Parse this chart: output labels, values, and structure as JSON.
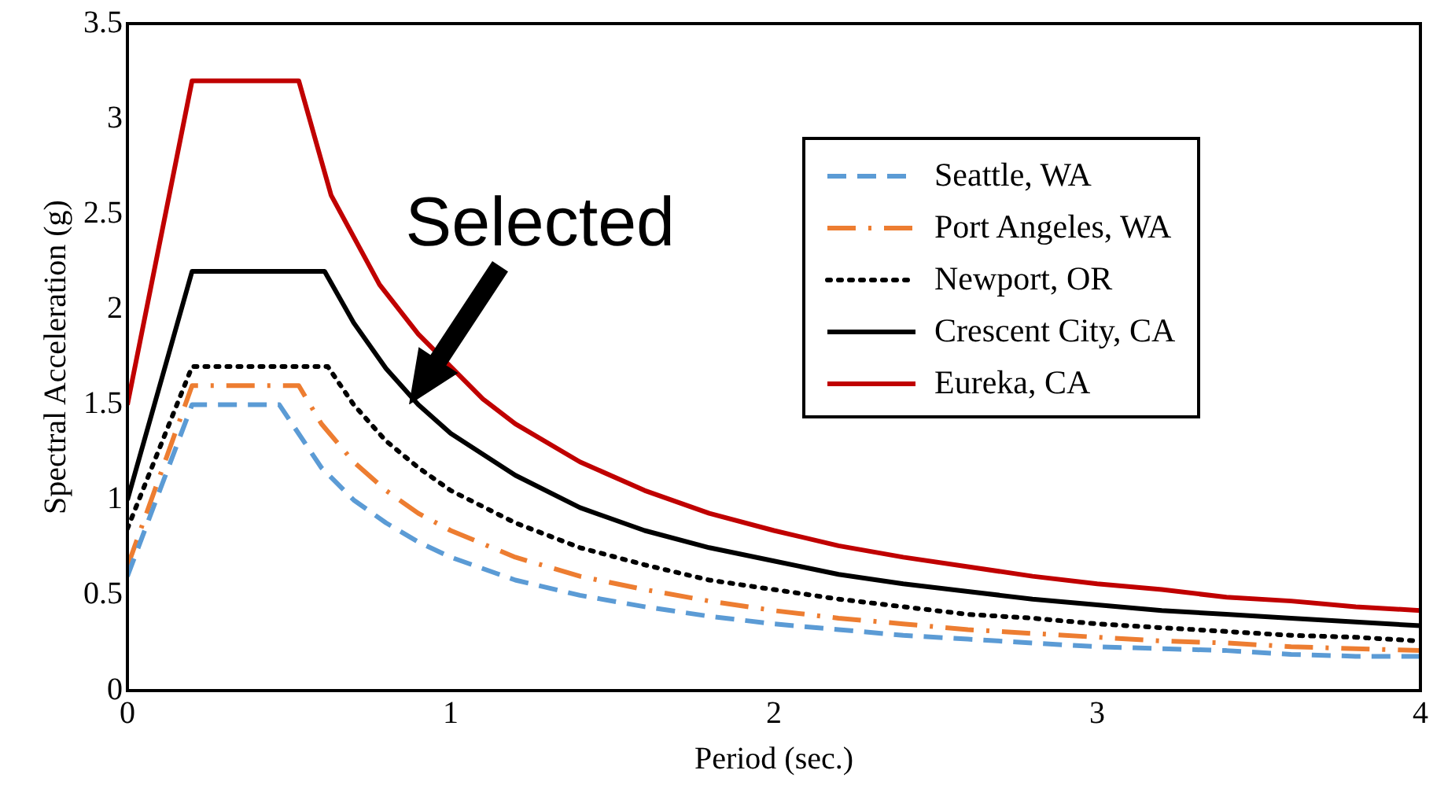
{
  "chart_data": {
    "type": "line",
    "xlabel": "Period (sec.)",
    "ylabel": "Spectral Acceleration (g)",
    "xlim": [
      0,
      4
    ],
    "xticks": [
      0,
      1,
      2,
      3,
      4
    ],
    "ylim": [
      0,
      3.5
    ],
    "yticks": [
      0,
      0.5,
      1,
      1.5,
      2,
      2.5,
      3,
      3.5
    ],
    "grid": false,
    "legend": "top right",
    "marker": "none",
    "annotations": [
      {
        "text": "Selected",
        "x": 0.87,
        "y": 1.5
      }
    ],
    "series": [
      {
        "name": "Seattle, WA",
        "color": "#5b9bd5",
        "line_style": "dashed",
        "x": [
          0,
          0.2,
          0.47,
          0.6,
          0.7,
          0.8,
          0.9,
          1,
          1.2,
          1.4,
          1.6,
          1.8,
          2,
          2.2,
          2.4,
          2.6,
          2.8,
          3,
          3.2,
          3.4,
          3.6,
          3.8,
          4
        ],
        "values": [
          0.6,
          1.5,
          1.5,
          1.17,
          1.0,
          0.88,
          0.78,
          0.7,
          0.58,
          0.5,
          0.44,
          0.39,
          0.35,
          0.32,
          0.29,
          0.27,
          0.25,
          0.23,
          0.22,
          0.21,
          0.19,
          0.18,
          0.18
        ]
      },
      {
        "name": "Port Angeles, WA",
        "color": "#ed7d31",
        "line_style": "dashdot",
        "x": [
          0,
          0.2,
          0.53,
          0.6,
          0.7,
          0.8,
          0.9,
          1,
          1.2,
          1.4,
          1.6,
          1.8,
          2,
          2.2,
          2.4,
          2.6,
          2.8,
          3,
          3.2,
          3.4,
          3.6,
          3.8,
          4
        ],
        "values": [
          0.65,
          1.6,
          1.6,
          1.4,
          1.2,
          1.05,
          0.93,
          0.84,
          0.7,
          0.6,
          0.53,
          0.47,
          0.42,
          0.38,
          0.35,
          0.32,
          0.3,
          0.28,
          0.26,
          0.25,
          0.23,
          0.22,
          0.21
        ]
      },
      {
        "name": "Newport, OR",
        "color": "#000000",
        "line_style": "dotted",
        "x": [
          0,
          0.2,
          0.62,
          0.7,
          0.8,
          0.9,
          1,
          1.2,
          1.4,
          1.6,
          1.8,
          2,
          2.2,
          2.4,
          2.6,
          2.8,
          3,
          3.2,
          3.4,
          3.6,
          3.8,
          4
        ],
        "values": [
          0.85,
          1.7,
          1.7,
          1.5,
          1.31,
          1.17,
          1.05,
          0.88,
          0.75,
          0.66,
          0.58,
          0.53,
          0.48,
          0.44,
          0.4,
          0.38,
          0.35,
          0.33,
          0.31,
          0.29,
          0.28,
          0.26
        ]
      },
      {
        "name": "Crescent City, CA",
        "color": "#000000",
        "line_style": "solid",
        "x": [
          0,
          0.2,
          0.61,
          0.7,
          0.8,
          0.9,
          1,
          1.2,
          1.4,
          1.6,
          1.8,
          2,
          2.2,
          2.4,
          2.6,
          2.8,
          3,
          3.2,
          3.4,
          3.6,
          3.8,
          4
        ],
        "values": [
          1.0,
          2.2,
          2.2,
          1.93,
          1.69,
          1.5,
          1.35,
          1.13,
          0.96,
          0.84,
          0.75,
          0.68,
          0.61,
          0.56,
          0.52,
          0.48,
          0.45,
          0.42,
          0.4,
          0.38,
          0.36,
          0.34
        ]
      },
      {
        "name": "Eureka, CA",
        "color": "#c00000",
        "line_style": "solid",
        "x": [
          0,
          0.2,
          0.53,
          0.63,
          0.78,
          0.9,
          1.1,
          1.2,
          1.4,
          1.6,
          1.8,
          2,
          2.2,
          2.4,
          2.6,
          2.8,
          3,
          3.2,
          3.4,
          3.6,
          3.8,
          4
        ],
        "values": [
          1.5,
          3.2,
          3.2,
          2.6,
          2.13,
          1.87,
          1.53,
          1.4,
          1.2,
          1.05,
          0.93,
          0.84,
          0.76,
          0.7,
          0.65,
          0.6,
          0.56,
          0.53,
          0.49,
          0.47,
          0.44,
          0.42
        ]
      }
    ]
  }
}
